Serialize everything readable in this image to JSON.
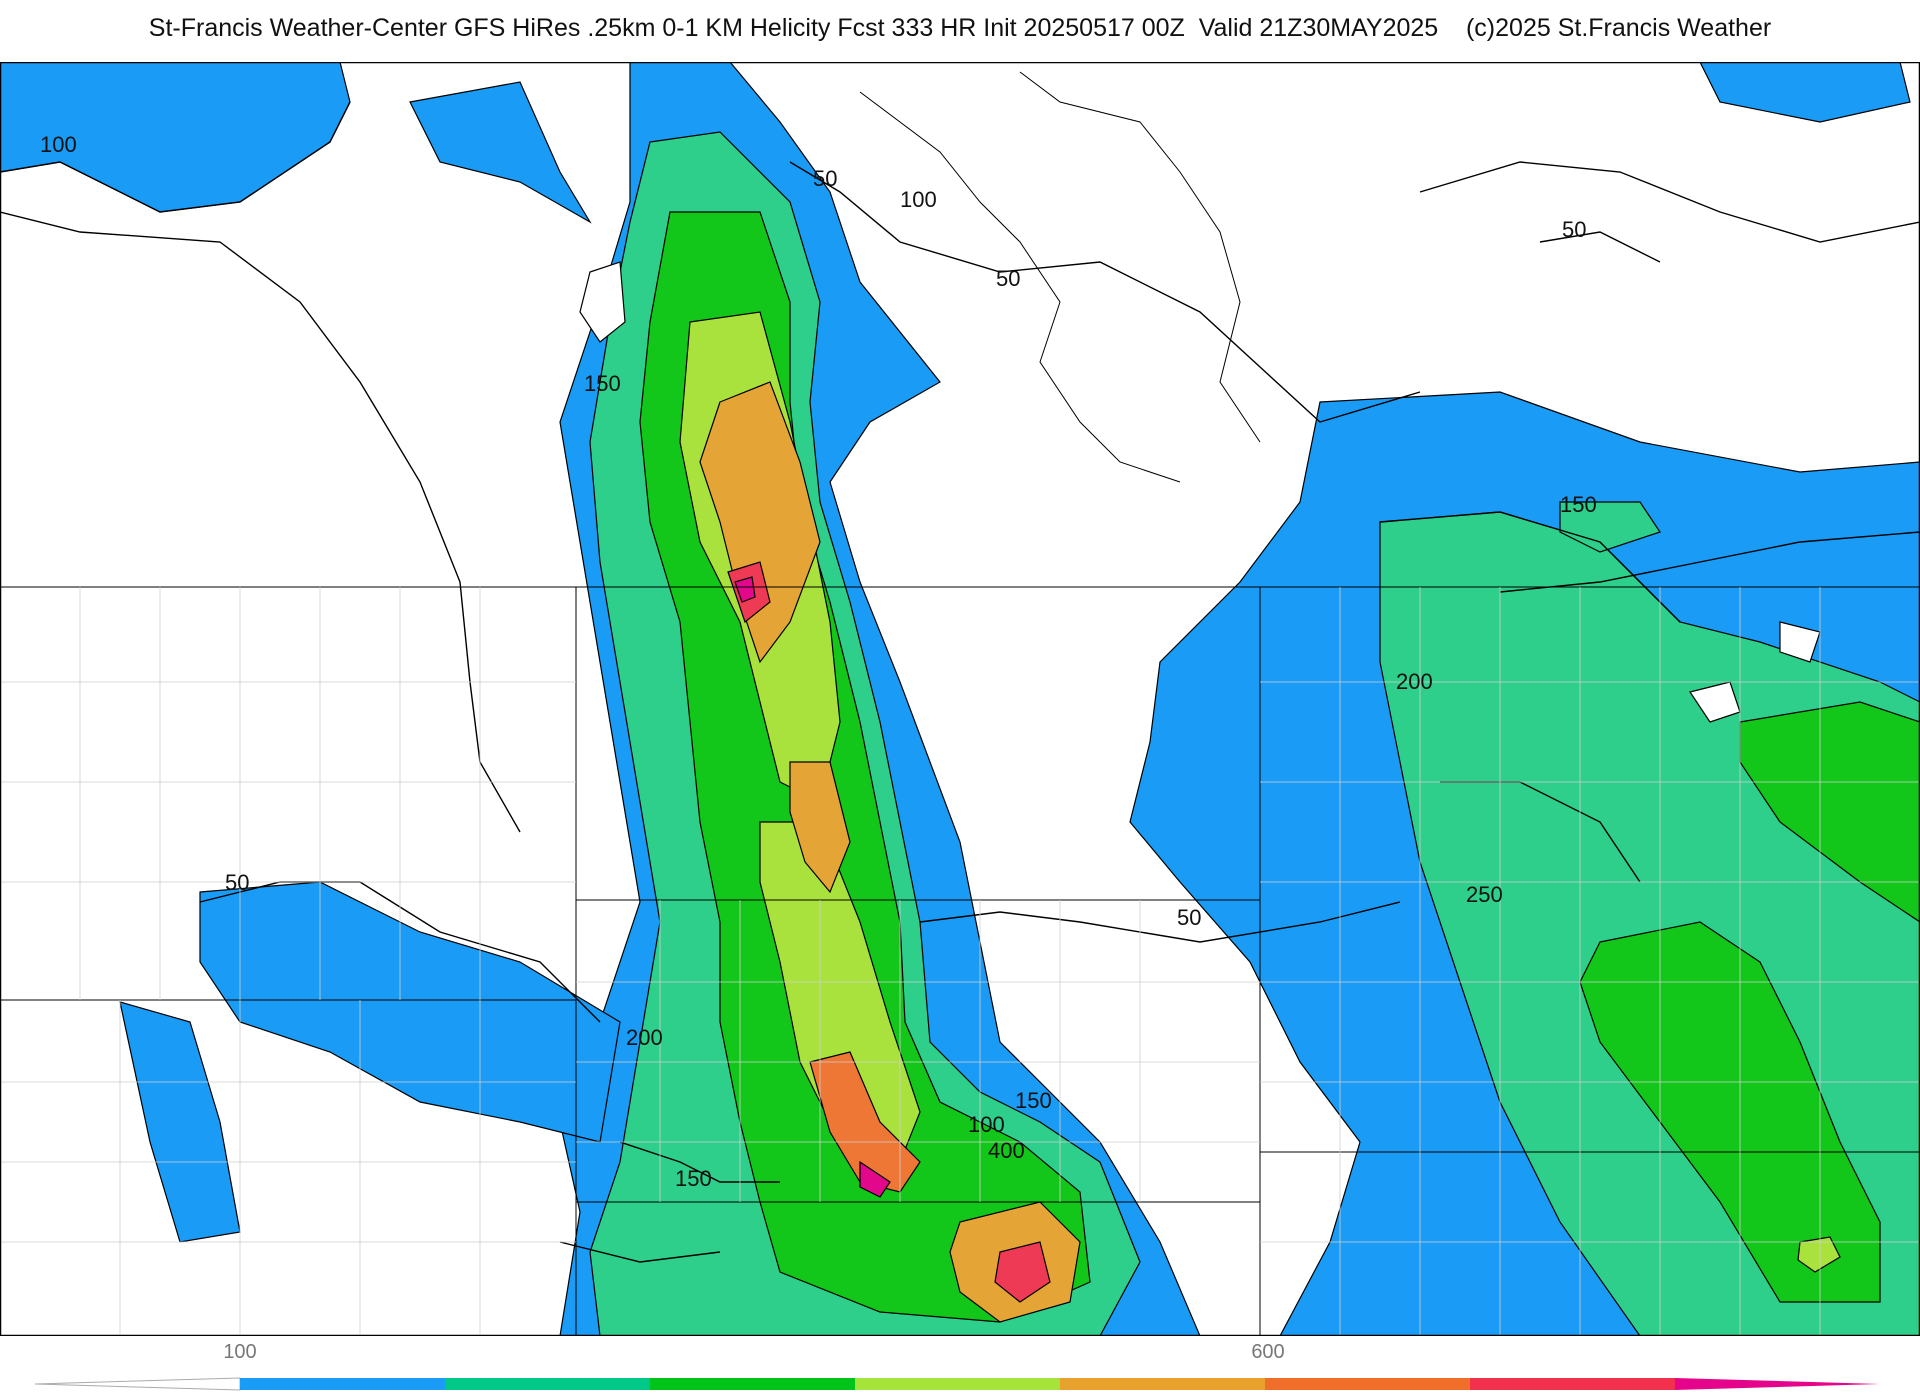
{
  "header": {
    "title": "St-Francis Weather-Center GFS HiRes .25km 0-1 KM Helicity Fcst 333 HR Init 20250517 00Z  Valid 21Z30MAY2025    (c)2025 St.Francis Weather"
  },
  "contour_labels": [
    "100",
    "50",
    "100",
    "50",
    "150",
    "50",
    "150",
    "200",
    "250",
    "50",
    "50",
    "200",
    "150",
    "150",
    "100",
    "400"
  ],
  "colorbar": {
    "tick_labels": [
      "100",
      "600"
    ],
    "colors": [
      "#1a9bf5",
      "#00c987",
      "#00c41a",
      "#a5e23a",
      "#e8a12d",
      "#ef6f2a",
      "#f2314f",
      "#e5048b"
    ]
  },
  "palette": {
    "c1": "#1a9bf5",
    "c2": "#2dcf8a",
    "c3": "#12c61a",
    "c4": "#a9e23c",
    "c5": "#e5a536",
    "c6": "#ee7735",
    "c7": "#ef3a55",
    "c8": "#e3078c"
  }
}
